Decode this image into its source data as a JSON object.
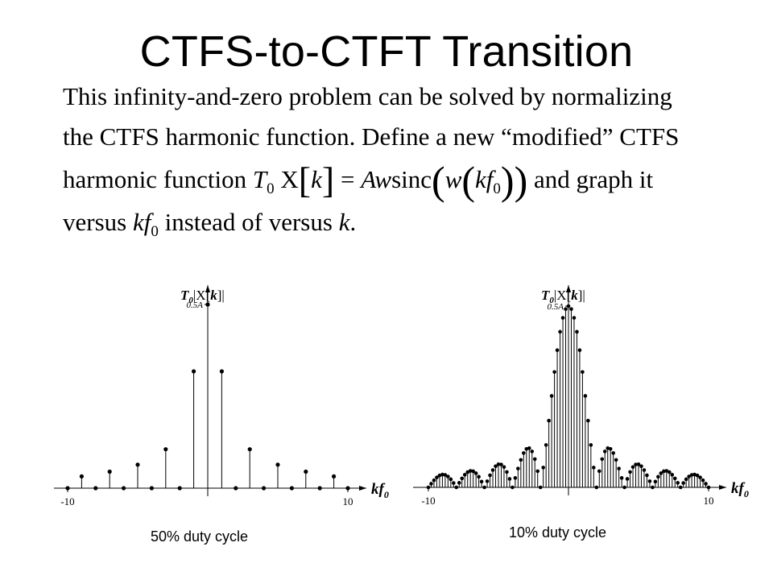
{
  "slide": {
    "title": "CTFS-to-CTFT Transition",
    "line1": "This infinity-and-zero problem can be solved by normalizing",
    "line2": "the CTFS harmonic function.  Define a new “modified” CTFS",
    "line3_pre": "harmonic function",
    "line3_post": "and graph it",
    "line4_pre": "versus",
    "line4_mid": "instead of versus",
    "line4_end": ".",
    "formula": {
      "T": "T",
      "T_sub": "0",
      "X": "X",
      "k": "k",
      "eq": "=",
      "A": "A",
      "w": "w",
      "sinc": "sinc",
      "kf": "kf",
      "f_sub": "0"
    }
  },
  "chart_data": [
    {
      "type": "stem",
      "caption": "50% duty cycle",
      "ylabel": "T0|X[k]|",
      "xlabel": "kf0",
      "x_tick_labels": [
        "-10",
        "10"
      ],
      "y_tick_label": "0.5A",
      "xlim": [
        -10,
        10
      ],
      "ylim": [
        0,
        0.5
      ],
      "x": [
        -10,
        -9,
        -8,
        -7,
        -6,
        -5,
        -4,
        -3,
        -2,
        -1,
        0,
        1,
        2,
        3,
        4,
        5,
        6,
        7,
        8,
        9,
        10
      ],
      "values": [
        0,
        0.032,
        0,
        0.045,
        0,
        0.064,
        0,
        0.106,
        0,
        0.318,
        0.5,
        0.318,
        0,
        0.106,
        0,
        0.064,
        0,
        0.045,
        0,
        0.032,
        0
      ]
    },
    {
      "type": "stem",
      "caption": "10% duty cycle",
      "ylabel": "T0|X[k]|",
      "xlabel": "kf0",
      "x_tick_labels": [
        "-10",
        "10"
      ],
      "y_tick_label": "0.5A",
      "xlim": [
        -10,
        10
      ],
      "ylim": [
        0,
        0.5
      ],
      "x_step": 0.2,
      "envelope": "0.5*|sinc(0.5*kf0)|"
    }
  ]
}
